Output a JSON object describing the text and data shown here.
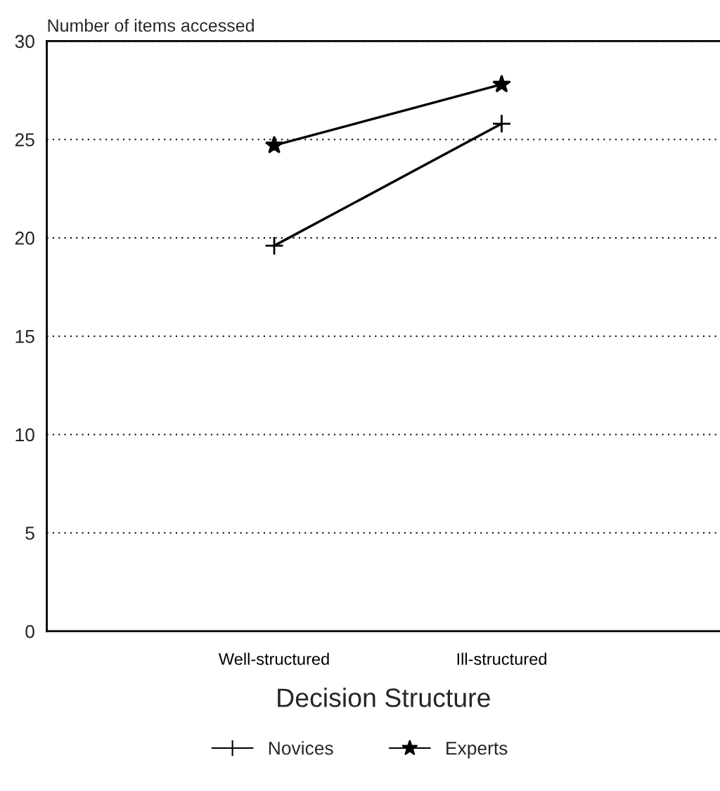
{
  "chart_data": {
    "type": "line",
    "ylabel": "Number of items accessed",
    "xlabel": "Decision Structure",
    "categories": [
      "Well-structured",
      "Ill-structured"
    ],
    "series": [
      {
        "name": "Novices",
        "color": "#000000",
        "marker": "cross",
        "values": [
          19.6,
          25.8
        ]
      },
      {
        "name": "Experts",
        "color": "#000000",
        "marker": "star",
        "values": [
          24.7,
          27.8
        ]
      }
    ],
    "ylim": [
      0,
      30
    ],
    "yticks": [
      0,
      5,
      10,
      15,
      20,
      25,
      30
    ],
    "grid": "y",
    "legend": "bottom",
    "line_style": "solid"
  }
}
